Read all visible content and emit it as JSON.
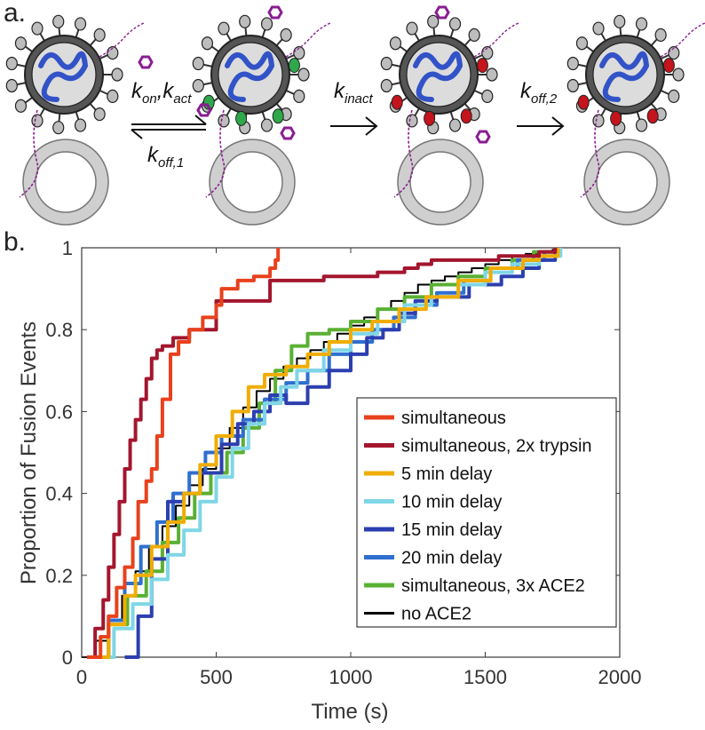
{
  "panel_a": {
    "label": "a.",
    "transitions": [
      {
        "forward_main": "k",
        "forward_sub": "on",
        "forward_main2": "k",
        "forward_sub2": "act",
        "reverse_main": "k",
        "reverse_sub": "off,1"
      },
      {
        "main": "k",
        "sub": "inact"
      },
      {
        "main": "k",
        "sub": "off,2"
      }
    ]
  },
  "panel_b": {
    "label": "b."
  },
  "colors": {
    "simultaneous": "#e8411d",
    "trypsin": "#a3162d",
    "delay5": "#f0ad00",
    "delay10": "#7fd6e6",
    "delay15": "#2c3fb0",
    "delay20": "#2f6fcf",
    "ace2": "#5ab033",
    "noace2": "#000000",
    "virion": "#4d4d4d",
    "rna": "#3253c7",
    "ligand": "#8a1d92",
    "green_site": "#2ea84a",
    "red_site": "#c4141c",
    "membrane": "#cfcfcf"
  },
  "chart_data": {
    "type": "line",
    "xlabel": "Time (s)",
    "ylabel": "Proportion of Fusion Events",
    "xlim": [
      0,
      2000
    ],
    "ylim": [
      0,
      1
    ],
    "xticks": [
      0,
      500,
      1000,
      1500,
      2000
    ],
    "yticks": [
      0,
      0.2,
      0.4,
      0.6,
      0.8,
      1
    ],
    "xtick_labels": [
      "0",
      "500",
      "1000",
      "1500",
      "2000"
    ],
    "ytick_labels": [
      "0",
      "0.2",
      "0.4",
      "0.6",
      "0.8",
      "1"
    ],
    "legend_position": "center-right",
    "series": [
      {
        "name": "simultaneous",
        "color_key": "simultaneous",
        "x": [
          20,
          70,
          100,
          130,
          160,
          190,
          210,
          240,
          260,
          280,
          300,
          330,
          360,
          400,
          450,
          500,
          520,
          580,
          640,
          700,
          720,
          730
        ],
        "y": [
          0.0,
          0.05,
          0.1,
          0.17,
          0.22,
          0.29,
          0.38,
          0.43,
          0.46,
          0.54,
          0.63,
          0.74,
          0.77,
          0.8,
          0.83,
          0.86,
          0.9,
          0.92,
          0.93,
          0.95,
          0.97,
          1.0
        ]
      },
      {
        "name": "simultaneous, 2x trypsin",
        "color_key": "trypsin",
        "x": [
          20,
          50,
          80,
          100,
          120,
          140,
          160,
          180,
          200,
          220,
          240,
          260,
          280,
          300,
          340,
          400,
          500,
          700,
          900,
          1100,
          1200,
          1250,
          1300,
          1400,
          1550,
          1700,
          1760
        ],
        "y": [
          0.0,
          0.07,
          0.14,
          0.22,
          0.3,
          0.38,
          0.46,
          0.53,
          0.58,
          0.63,
          0.68,
          0.73,
          0.75,
          0.76,
          0.78,
          0.8,
          0.87,
          0.92,
          0.93,
          0.94,
          0.95,
          0.96,
          0.97,
          0.97,
          0.98,
          0.99,
          1.0
        ]
      },
      {
        "name": "5 min delay",
        "color_key": "delay5",
        "x": [
          30,
          100,
          160,
          200,
          260,
          320,
          380,
          440,
          500,
          560,
          620,
          680,
          760,
          840,
          920,
          1000,
          1080,
          1180,
          1280,
          1400,
          1520,
          1640,
          1700,
          1770
        ],
        "y": [
          0.0,
          0.08,
          0.15,
          0.2,
          0.27,
          0.33,
          0.4,
          0.47,
          0.54,
          0.6,
          0.66,
          0.69,
          0.71,
          0.74,
          0.77,
          0.8,
          0.82,
          0.85,
          0.88,
          0.92,
          0.95,
          0.97,
          0.98,
          1.0
        ]
      },
      {
        "name": "10 min delay",
        "color_key": "delay10",
        "x": [
          40,
          120,
          190,
          260,
          320,
          380,
          440,
          500,
          560,
          620,
          680,
          740,
          800,
          900,
          1000,
          1100,
          1200,
          1300,
          1400,
          1500,
          1600,
          1700,
          1780
        ],
        "y": [
          0.0,
          0.07,
          0.13,
          0.19,
          0.25,
          0.31,
          0.38,
          0.44,
          0.51,
          0.57,
          0.62,
          0.66,
          0.7,
          0.75,
          0.79,
          0.82,
          0.86,
          0.88,
          0.91,
          0.94,
          0.96,
          0.98,
          1.0
        ]
      },
      {
        "name": "15 min delay",
        "color_key": "delay15",
        "x": [
          160,
          210,
          260,
          320,
          380,
          440,
          520,
          580,
          640,
          700,
          760,
          840,
          920,
          1000,
          1060,
          1120,
          1180,
          1240,
          1320,
          1440,
          1560,
          1640,
          1700,
          1760
        ],
        "y": [
          0.0,
          0.1,
          0.24,
          0.38,
          0.4,
          0.45,
          0.52,
          0.57,
          0.6,
          0.64,
          0.62,
          0.66,
          0.7,
          0.74,
          0.78,
          0.8,
          0.84,
          0.87,
          0.88,
          0.91,
          0.93,
          0.95,
          0.97,
          1.0
        ]
      },
      {
        "name": "20 min delay",
        "color_key": "delay20",
        "x": [
          40,
          100,
          160,
          220,
          280,
          340,
          400,
          460,
          520,
          600,
          680,
          760,
          840,
          920,
          1000,
          1080,
          1160,
          1240,
          1320,
          1420,
          1520,
          1620,
          1720,
          1770
        ],
        "y": [
          0.0,
          0.09,
          0.18,
          0.27,
          0.33,
          0.4,
          0.45,
          0.5,
          0.54,
          0.58,
          0.63,
          0.67,
          0.7,
          0.74,
          0.77,
          0.8,
          0.83,
          0.86,
          0.89,
          0.92,
          0.95,
          0.97,
          0.99,
          1.0
        ]
      },
      {
        "name": "simultaneous, 3x ACE2",
        "color_key": "ace2",
        "x": [
          30,
          100,
          170,
          240,
          300,
          360,
          420,
          480,
          540,
          600,
          660,
          720,
          780,
          840,
          920,
          1000,
          1100,
          1200,
          1300,
          1400,
          1500,
          1600,
          1680,
          1760
        ],
        "y": [
          0.0,
          0.08,
          0.15,
          0.21,
          0.28,
          0.34,
          0.4,
          0.45,
          0.5,
          0.56,
          0.62,
          0.7,
          0.76,
          0.79,
          0.8,
          0.82,
          0.85,
          0.88,
          0.91,
          0.93,
          0.95,
          0.97,
          0.99,
          1.0
        ]
      },
      {
        "name": "no ACE2",
        "color_key": "noace2",
        "x": [
          0,
          50,
          100,
          150,
          200,
          250,
          300,
          350,
          400,
          450,
          500,
          550,
          600,
          650,
          700,
          750,
          800,
          850,
          900,
          950,
          1000,
          1050,
          1100,
          1150,
          1200,
          1250,
          1300,
          1350,
          1400,
          1450,
          1500,
          1550,
          1600,
          1650,
          1700,
          1750,
          1770
        ],
        "y": [
          0.0,
          0.04,
          0.09,
          0.15,
          0.21,
          0.27,
          0.32,
          0.37,
          0.42,
          0.46,
          0.51,
          0.56,
          0.61,
          0.65,
          0.68,
          0.71,
          0.73,
          0.75,
          0.77,
          0.79,
          0.81,
          0.83,
          0.85,
          0.87,
          0.89,
          0.91,
          0.92,
          0.93,
          0.94,
          0.95,
          0.96,
          0.97,
          0.98,
          0.985,
          0.99,
          0.995,
          1.0
        ]
      }
    ]
  }
}
